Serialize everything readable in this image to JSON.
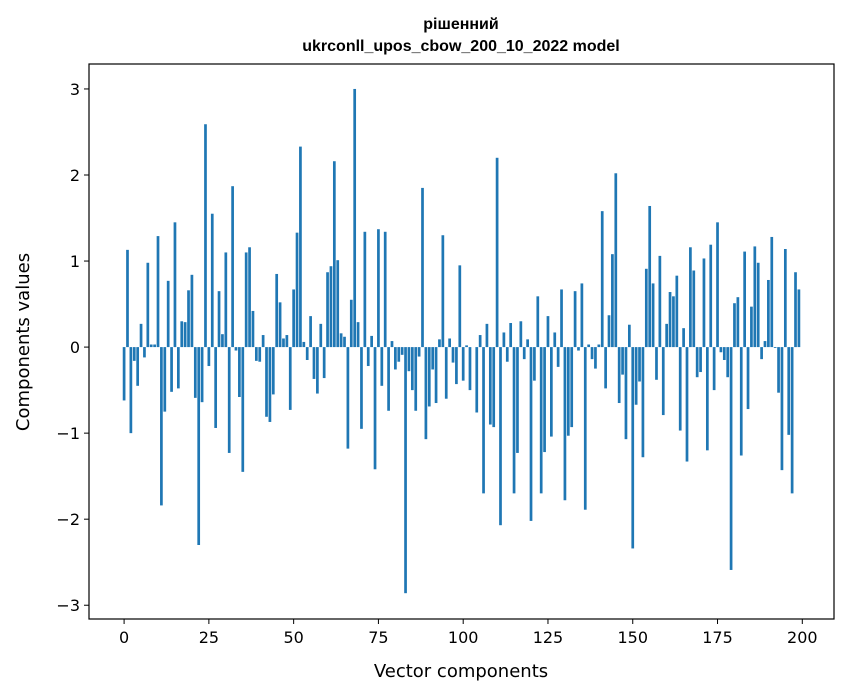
{
  "chart_data": {
    "type": "bar",
    "title_line1": "рішенний",
    "title_line2": "ukrconll_upos_cbow_200_10_2022 model",
    "xlabel": "Vector components",
    "ylabel": "Components values",
    "xlim": [
      -10.35,
      209.35
    ],
    "ylim": [
      -3.16,
      3.29
    ],
    "xticks": [
      0,
      25,
      50,
      75,
      100,
      125,
      150,
      175,
      200
    ],
    "xtick_labels": [
      "0",
      "25",
      "50",
      "75",
      "100",
      "125",
      "150",
      "175",
      "200"
    ],
    "yticks": [
      -3,
      -2,
      -1,
      0,
      1,
      2,
      3
    ],
    "ytick_labels": [
      "−3",
      "−2",
      "−1",
      "0",
      "1",
      "2",
      "3"
    ],
    "grid": false,
    "bar_color": "#1f77b4",
    "values": [
      -0.62,
      1.13,
      -1.0,
      -0.16,
      -0.45,
      0.27,
      -0.12,
      0.98,
      0.03,
      0.03,
      1.29,
      -1.84,
      -0.75,
      0.77,
      -0.52,
      1.45,
      -0.48,
      0.3,
      0.29,
      0.66,
      0.84,
      -0.59,
      -2.3,
      -0.64,
      2.59,
      -0.22,
      1.55,
      -0.94,
      0.65,
      0.15,
      1.1,
      -1.23,
      1.87,
      -0.04,
      -0.58,
      -1.45,
      1.1,
      1.16,
      0.42,
      -0.16,
      -0.17,
      0.14,
      -0.81,
      -0.87,
      -0.55,
      0.85,
      0.52,
      0.1,
      0.14,
      -0.73,
      0.67,
      1.33,
      2.33,
      0.06,
      -0.15,
      0.36,
      -0.37,
      -0.54,
      0.27,
      -0.36,
      0.87,
      0.94,
      2.16,
      1.01,
      0.16,
      0.12,
      -1.18,
      0.55,
      3.0,
      0.29,
      -0.95,
      1.34,
      -0.22,
      0.13,
      -1.42,
      1.37,
      -0.45,
      1.34,
      -0.74,
      0.07,
      -0.26,
      -0.17,
      -0.09,
      -2.86,
      -0.28,
      -0.5,
      -0.74,
      -0.11,
      1.85,
      -1.07,
      -0.69,
      -0.26,
      -0.65,
      0.09,
      1.3,
      -0.6,
      0.1,
      -0.18,
      -0.43,
      0.95,
      -0.39,
      0.02,
      -0.5,
      0.0,
      -0.76,
      0.14,
      -1.7,
      0.27,
      -0.9,
      -0.93,
      2.2,
      -2.07,
      0.17,
      -0.17,
      0.28,
      -1.7,
      -1.23,
      0.3,
      -0.14,
      0.09,
      -2.02,
      -0.39,
      0.59,
      -1.7,
      -1.22,
      0.36,
      -1.04,
      0.17,
      -0.23,
      0.67,
      -1.78,
      -1.03,
      -0.93,
      0.65,
      -0.04,
      0.74,
      -1.89,
      0.03,
      -0.14,
      -0.25,
      0.03,
      1.58,
      -0.48,
      0.37,
      1.08,
      2.02,
      -0.65,
      -0.32,
      -1.07,
      0.26,
      -2.34,
      -0.67,
      -0.4,
      -1.28,
      0.91,
      1.64,
      0.74,
      -0.38,
      1.06,
      -0.79,
      0.27,
      0.64,
      0.59,
      0.83,
      -0.97,
      0.22,
      -1.33,
      1.16,
      0.89,
      -0.35,
      -0.29,
      1.03,
      -1.2,
      1.19,
      -0.5,
      1.45,
      -0.06,
      -0.15,
      -0.35,
      -2.59,
      0.51,
      0.58,
      -1.26,
      1.11,
      -0.72,
      0.47,
      1.17,
      0.98,
      -0.14,
      0.07,
      0.78,
      1.28,
      -0.01,
      -0.53,
      -1.43,
      1.14,
      -1.02,
      -1.7,
      0.87,
      0.67
    ]
  }
}
